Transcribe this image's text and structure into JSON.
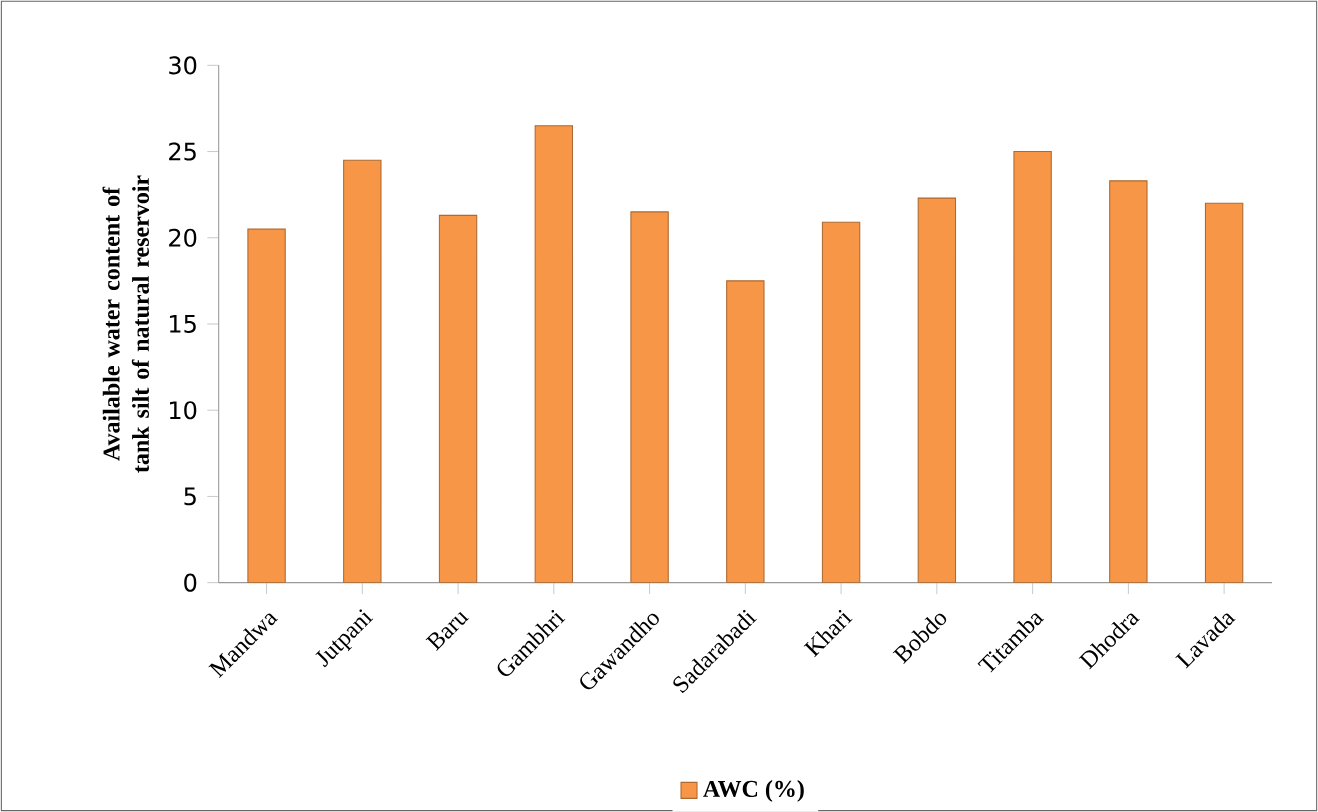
{
  "chart_data": {
    "type": "bar",
    "ylabel": "Available water content of tank silt of natural reservoir",
    "categories": [
      "Mandwa",
      "Jutpani",
      "Baru",
      "Gambhri",
      "Gawandho",
      "Sadarabadi",
      "Khari",
      "Bobdo",
      "Titamba",
      "Dhodra",
      "Lavada"
    ],
    "series": [
      {
        "name": "AWC (%)",
        "color": "#f79646",
        "values": [
          20.5,
          24.5,
          21.3,
          26.5,
          21.5,
          17.5,
          20.9,
          22.3,
          25.0,
          23.3,
          22.0
        ]
      }
    ],
    "ylim": [
      0,
      30
    ],
    "yticks": [
      0,
      5,
      10,
      15,
      20,
      25,
      30
    ],
    "grid": false,
    "legend": "bottom"
  }
}
